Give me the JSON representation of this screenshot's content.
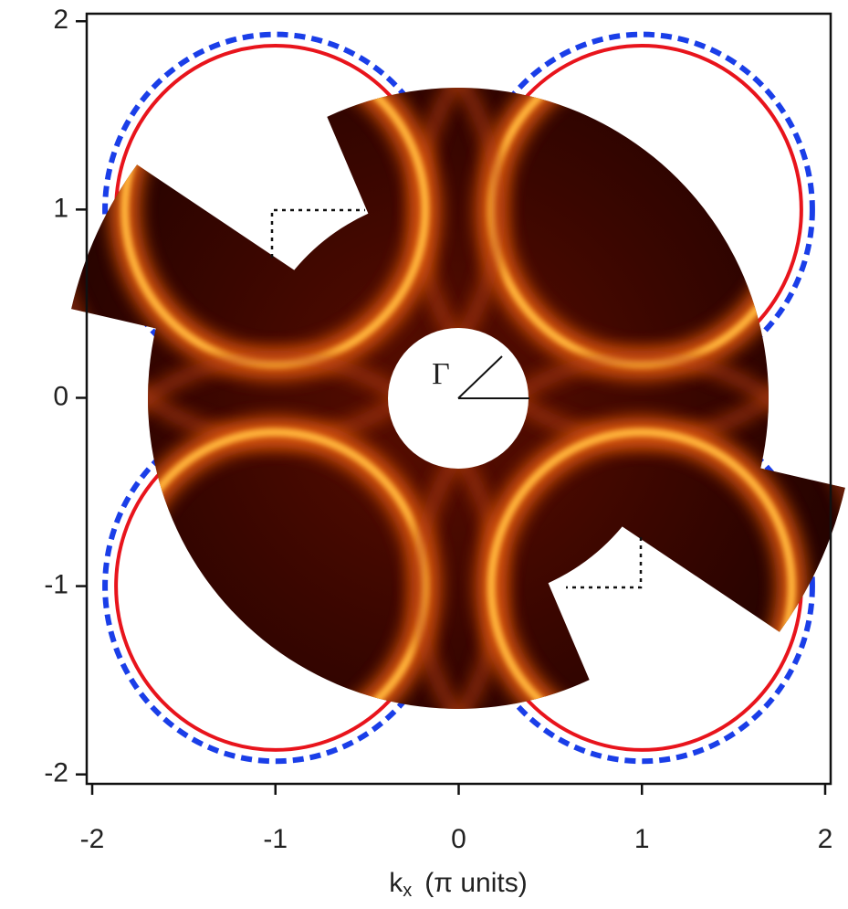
{
  "chart_data": {
    "type": "heatmap",
    "x_label": "k",
    "x_label_sub": "x",
    "x_label_unit": "(π units)",
    "annotation": "Γ",
    "xlim": [
      -2.03,
      2.03
    ],
    "ylim": [
      -2.05,
      2.04
    ],
    "xticks": [
      -2,
      -1,
      0,
      1,
      2
    ],
    "yticks": [
      -2,
      -1,
      0,
      1,
      2
    ],
    "contours": [
      {
        "color": "#e8141c",
        "dash": "solid",
        "radius": 0.87,
        "centers": [
          [
            -1,
            1
          ],
          [
            1,
            1
          ],
          [
            -1,
            -1
          ],
          [
            1,
            -1
          ]
        ]
      },
      {
        "color": "#1a3ee8",
        "dash": "dashed",
        "radius": 0.93,
        "centers": [
          [
            -1,
            1
          ],
          [
            1,
            1
          ],
          [
            -1,
            -1
          ],
          [
            1,
            -1
          ]
        ]
      }
    ]
  }
}
